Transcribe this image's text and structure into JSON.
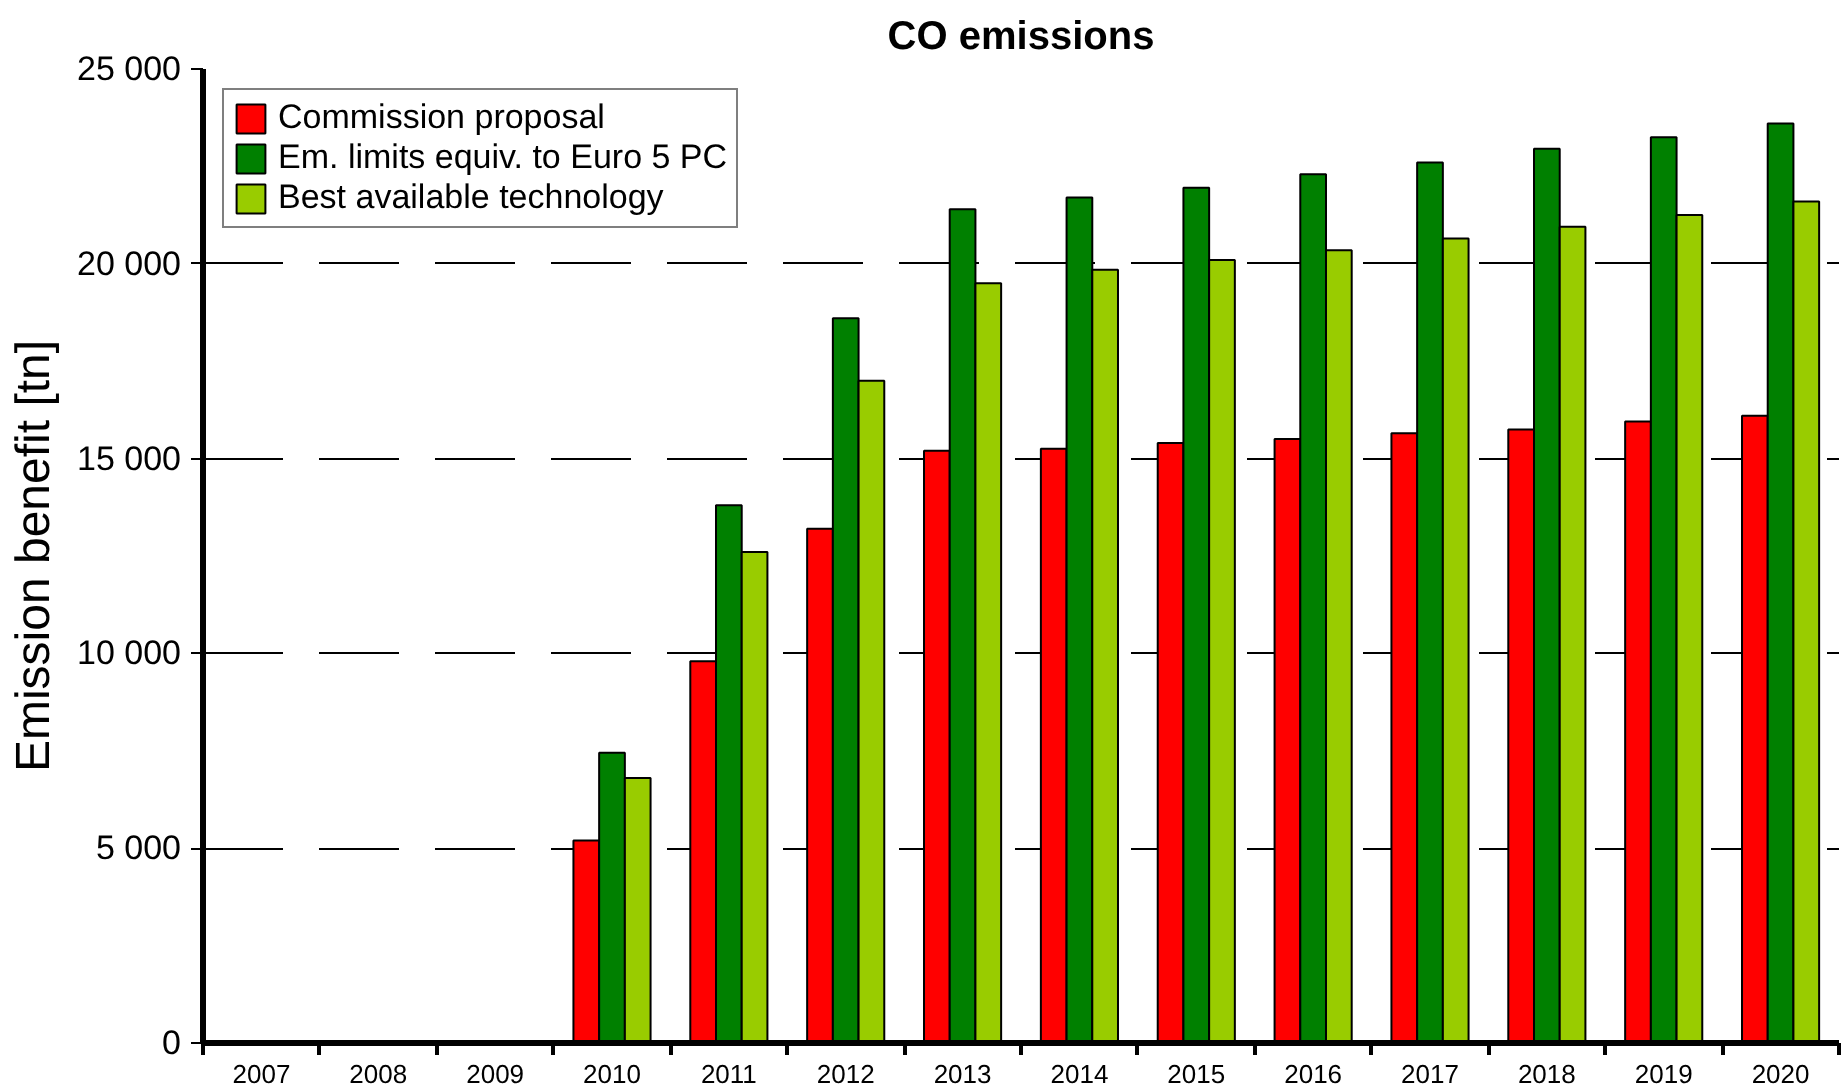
{
  "chart_data": {
    "type": "bar",
    "title": "CO emissions",
    "ylabel": "Emission benefit [tn]",
    "categories": [
      "2007",
      "2008",
      "2009",
      "2010",
      "2011",
      "2012",
      "2013",
      "2014",
      "2015",
      "2016",
      "2017",
      "2018",
      "2019",
      "2020"
    ],
    "series": [
      {
        "name": "Commission proposal",
        "color": "#ff0000",
        "values": [
          null,
          null,
          null,
          5200,
          9800,
          13200,
          15200,
          15250,
          15400,
          15500,
          15650,
          15750,
          15950,
          16100
        ]
      },
      {
        "name": "Em. limits equiv. to Euro 5 PC",
        "color": "#008000",
        "values": [
          null,
          null,
          null,
          7450,
          13800,
          18600,
          21400,
          21700,
          21950,
          22300,
          22600,
          22950,
          23250,
          23600
        ]
      },
      {
        "name": "Best available technology",
        "color": "#99cc00",
        "values": [
          null,
          null,
          null,
          6800,
          12600,
          17000,
          19500,
          19850,
          20100,
          20350,
          20650,
          20950,
          21250,
          21600
        ]
      }
    ],
    "ylim": [
      0,
      25000
    ],
    "yticks": [
      0,
      {
        "value": 5000,
        "label": "5 000"
      },
      {
        "value": 10000,
        "label": "10 000"
      },
      {
        "value": 15000,
        "label": "15 000"
      },
      {
        "value": 20000,
        "label": "20 000"
      },
      {
        "value": 25000,
        "label": "25 000"
      }
    ],
    "grid": "y",
    "legend": "top left"
  }
}
